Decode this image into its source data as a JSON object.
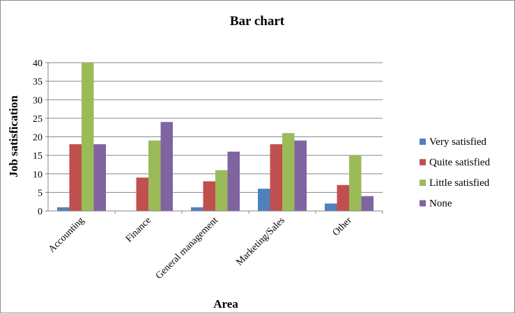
{
  "chart_data": {
    "type": "bar",
    "title": "Bar chart",
    "xlabel": "Area",
    "ylabel": "Job satisfication",
    "categories": [
      "Accounting",
      "Finance",
      "General management",
      "Marketing/Sales",
      "Other"
    ],
    "series": [
      {
        "name": "Very satisfied",
        "color": "#4f81bd",
        "values": [
          1,
          0,
          1,
          6,
          2
        ]
      },
      {
        "name": "Quite satisfied",
        "color": "#c0504d",
        "values": [
          18,
          9,
          8,
          18,
          7
        ]
      },
      {
        "name": "Little satisfied",
        "color": "#9bbb59",
        "values": [
          40,
          19,
          11,
          21,
          15
        ]
      },
      {
        "name": "None",
        "color": "#8064a2",
        "values": [
          18,
          24,
          16,
          19,
          4
        ]
      }
    ],
    "ylim": [
      0,
      40
    ],
    "yticks": [
      0,
      5,
      10,
      15,
      20,
      25,
      30,
      35,
      40
    ],
    "grid": true,
    "legend_position": "right"
  }
}
